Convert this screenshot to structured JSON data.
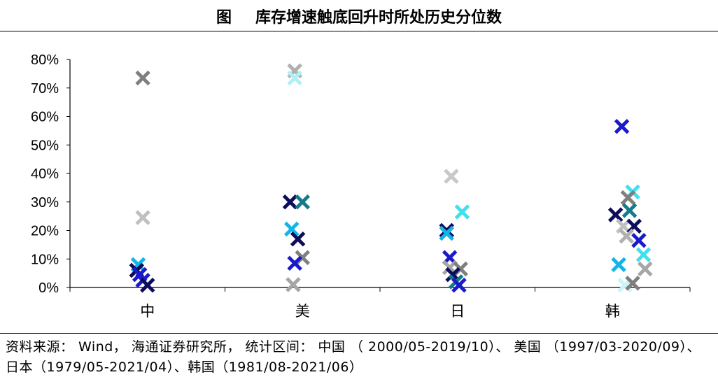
{
  "header": {
    "figure_label": "图",
    "title": "库存增速触底回升时所处历史分位数"
  },
  "source_note": "资料来源： Wind， 海通证券研究所， 统计区间： 中国 （ 2000/05-2019/10）、 美国 （1997/03-2020/09）、日本（1979/05-2021/04）、韩国（1981/08-2021/06）",
  "colors": [
    "#a6a6a6",
    "#7f7f7f",
    "#0d0d5c",
    "#1a1acc",
    "#13b5e8",
    "#3fe0f0",
    "#127b8c",
    "#c8c8c8"
  ],
  "chart_data": {
    "type": "scatter",
    "marker": "x",
    "categories": [
      "中",
      "美",
      "日",
      "韩"
    ],
    "ylim": [
      0,
      80
    ],
    "yticks": [
      "0%",
      "10%",
      "20%",
      "30%",
      "40%",
      "50%",
      "60%",
      "70%",
      "80%"
    ],
    "points": [
      {
        "cat": "中",
        "offset": -0.03,
        "y": 73.5,
        "color": "#7f7f7f"
      },
      {
        "cat": "中",
        "offset": -0.03,
        "y": 24.5,
        "color": "#c0c0c0"
      },
      {
        "cat": "中",
        "offset": -0.06,
        "y": 8,
        "color": "#13b5e8"
      },
      {
        "cat": "中",
        "offset": -0.07,
        "y": 6,
        "color": "#0d0d5c"
      },
      {
        "cat": "中",
        "offset": -0.05,
        "y": 4.5,
        "color": "#1a1acc"
      },
      {
        "cat": "中",
        "offset": -0.03,
        "y": 2.5,
        "color": "#1a1acc"
      },
      {
        "cat": "中",
        "offset": 0.0,
        "y": 0.8,
        "color": "#0d0d5c"
      },
      {
        "cat": "美",
        "offset": -0.05,
        "y": 76,
        "color": "#b0b0b0"
      },
      {
        "cat": "美",
        "offset": -0.05,
        "y": 73.5,
        "color": "#aef0f8"
      },
      {
        "cat": "美",
        "offset": -0.08,
        "y": 30,
        "color": "#0d0d5c"
      },
      {
        "cat": "美",
        "offset": 0.0,
        "y": 30,
        "color": "#127b8c"
      },
      {
        "cat": "美",
        "offset": -0.07,
        "y": 20.5,
        "color": "#13b5e8"
      },
      {
        "cat": "美",
        "offset": -0.03,
        "y": 17,
        "color": "#0d0d5c"
      },
      {
        "cat": "美",
        "offset": 0.0,
        "y": 10.5,
        "color": "#7f7f7f"
      },
      {
        "cat": "美",
        "offset": -0.05,
        "y": 8.5,
        "color": "#1a1acc"
      },
      {
        "cat": "美",
        "offset": -0.06,
        "y": 1,
        "color": "#a6a6a6"
      },
      {
        "cat": "日",
        "offset": -0.04,
        "y": 39,
        "color": "#c8c8c8"
      },
      {
        "cat": "日",
        "offset": 0.03,
        "y": 26.5,
        "color": "#3fe0f0"
      },
      {
        "cat": "日",
        "offset": -0.07,
        "y": 20,
        "color": "#0d0d5c"
      },
      {
        "cat": "日",
        "offset": -0.07,
        "y": 19,
        "color": "#13b5e8"
      },
      {
        "cat": "日",
        "offset": -0.05,
        "y": 10.5,
        "color": "#1a1acc"
      },
      {
        "cat": "日",
        "offset": -0.05,
        "y": 7,
        "color": "#a6a6a6"
      },
      {
        "cat": "日",
        "offset": 0.02,
        "y": 6.5,
        "color": "#7f7f7f"
      },
      {
        "cat": "日",
        "offset": -0.03,
        "y": 4.5,
        "color": "#0d0d5c"
      },
      {
        "cat": "日",
        "offset": -0.01,
        "y": 2,
        "color": "#127b8c"
      },
      {
        "cat": "日",
        "offset": 0.01,
        "y": 0.8,
        "color": "#1a1acc"
      },
      {
        "cat": "韩",
        "offset": 0.06,
        "y": 56.5,
        "color": "#1a1acc"
      },
      {
        "cat": "韩",
        "offset": 0.13,
        "y": 33.5,
        "color": "#3fe0f0"
      },
      {
        "cat": "韩",
        "offset": 0.1,
        "y": 31.5,
        "color": "#7f7f7f"
      },
      {
        "cat": "韩",
        "offset": 0.11,
        "y": 27,
        "color": "#127b8c"
      },
      {
        "cat": "韩",
        "offset": 0.02,
        "y": 25.5,
        "color": "#0d0d5c"
      },
      {
        "cat": "韩",
        "offset": 0.07,
        "y": 21.5,
        "color": "#c0c0c0"
      },
      {
        "cat": "韩",
        "offset": 0.14,
        "y": 21.5,
        "color": "#0d0d5c"
      },
      {
        "cat": "韩",
        "offset": 0.09,
        "y": 18,
        "color": "#b0b0b0"
      },
      {
        "cat": "韩",
        "offset": 0.17,
        "y": 16.5,
        "color": "#1a1acc"
      },
      {
        "cat": "韩",
        "offset": 0.2,
        "y": 11.5,
        "color": "#3fe0f0"
      },
      {
        "cat": "韩",
        "offset": 0.04,
        "y": 8,
        "color": "#13b5e8"
      },
      {
        "cat": "韩",
        "offset": 0.21,
        "y": 6.5,
        "color": "#a6a6a6"
      },
      {
        "cat": "韩",
        "offset": 0.08,
        "y": 0.8,
        "color": "#c8f4fa"
      },
      {
        "cat": "韩",
        "offset": 0.13,
        "y": 1.5,
        "color": "#7f7f7f"
      }
    ]
  }
}
